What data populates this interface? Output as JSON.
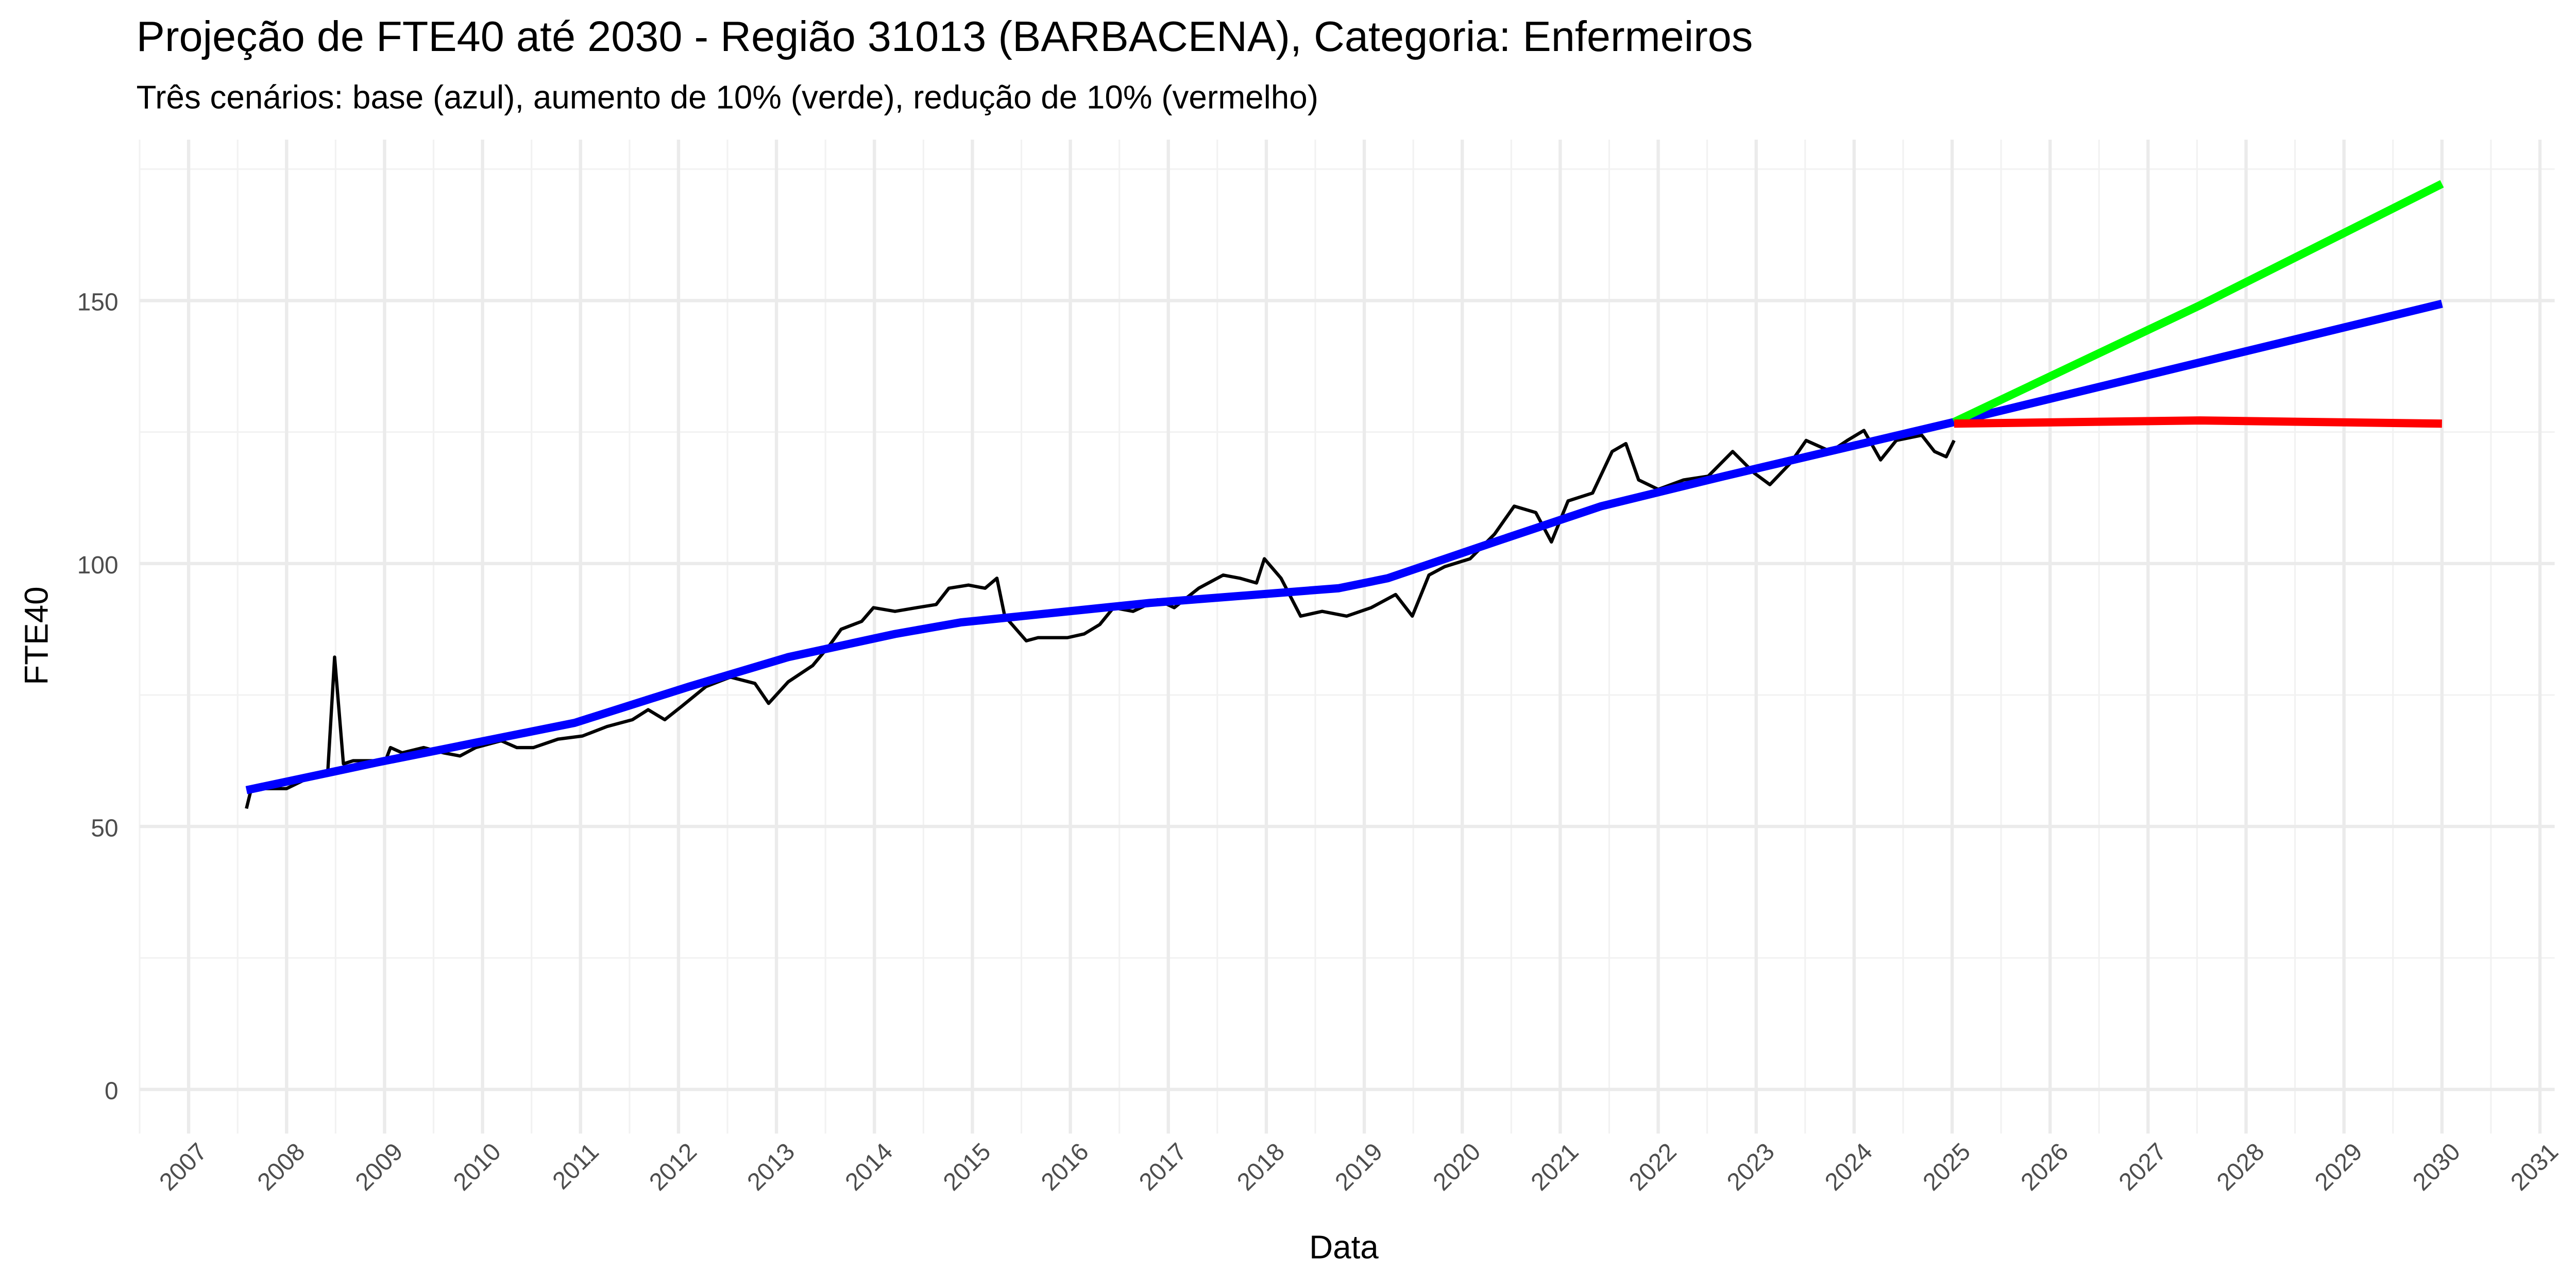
{
  "chart_data": {
    "type": "line",
    "title": "Projeção de FTE40 até 2030 - Região 31013 (BARBACENA), Categoria: Enfermeiros",
    "subtitle": "Três cenários: base (azul), aumento de 10% (verde), redução de 10% (vermelho)",
    "x_label": "Data",
    "y_label": "FTE40",
    "xlim": [
      2006.5,
      2031.15
    ],
    "ylim": [
      -8.4,
      180.6
    ],
    "xticks": [
      2007,
      2008,
      2009,
      2010,
      2011,
      2012,
      2013,
      2014,
      2015,
      2016,
      2017,
      2018,
      2019,
      2020,
      2021,
      2022,
      2023,
      2024,
      2025,
      2026,
      2027,
      2028,
      2029,
      2030,
      2031
    ],
    "yticks": [
      0,
      50,
      100,
      150
    ],
    "grid": true,
    "series": [
      {
        "color": "#000000",
        "x": [
          2007.59,
          2007.64,
          2008.0,
          2008.17,
          2008.34,
          2008.42,
          2008.49,
          2008.58,
          2008.68,
          2009.01,
          2009.06,
          2009.18,
          2009.4,
          2009.6,
          2009.77,
          2009.93,
          2010.19,
          2010.35,
          2010.52,
          2010.77,
          2011.02,
          2011.27,
          2011.53,
          2011.69,
          2011.86,
          2012.03,
          2012.28,
          2012.53,
          2012.78,
          2012.92,
          2013.12,
          2013.37,
          2013.54,
          2013.66,
          2013.87,
          2013.99,
          2014.21,
          2014.43,
          2014.63,
          2014.76,
          2014.96,
          2015.13,
          2015.25,
          2015.33,
          2015.55,
          2015.67,
          2015.97,
          2016.14,
          2016.3,
          2016.44,
          2016.64,
          2016.89,
          2017.06,
          2017.31,
          2017.56,
          2017.73,
          2017.9,
          2017.98,
          2018.15,
          2018.35,
          2018.57,
          2018.82,
          2019.07,
          2019.32,
          2019.49,
          2019.66,
          2019.82,
          2020.08,
          2020.33,
          2020.53,
          2020.75,
          2020.91,
          2021.08,
          2021.33,
          2021.53,
          2021.67,
          2021.8,
          2022.0,
          2022.26,
          2022.51,
          2022.76,
          2022.98,
          2023.14,
          2023.35,
          2023.51,
          2023.76,
          2023.93,
          2024.1,
          2024.27,
          2024.43,
          2024.69,
          2024.82,
          2024.94,
          2025.02
        ],
        "values": [
          53.4,
          57.2,
          57.2,
          58.75,
          59.7,
          60.3,
          82.2,
          61.9,
          62.5,
          62.5,
          65,
          64,
          65,
          64,
          63.4,
          65,
          66.3,
          65,
          65,
          66.6,
          67.2,
          69,
          70.3,
          72.2,
          70.3,
          72.8,
          76.6,
          78.4,
          77.2,
          73.4,
          77.5,
          80.6,
          84.4,
          87.5,
          89,
          91.6,
          90.9,
          91.6,
          92.2,
          95.3,
          95.9,
          95.3,
          97.2,
          90,
          85.3,
          85.9,
          85.9,
          86.6,
          88.4,
          91.6,
          90.9,
          93.1,
          91.6,
          95.3,
          97.8,
          97.2,
          96.3,
          100.9,
          97.2,
          90,
          90.9,
          90,
          91.6,
          94.1,
          90,
          97.8,
          99.4,
          100.9,
          105.6,
          110.9,
          109.7,
          104.1,
          111.9,
          113.4,
          121.3,
          122.8,
          115.9,
          114.1,
          115.9,
          116.6,
          121.3,
          117.2,
          115,
          119.1,
          123.4,
          121.3,
          123.4,
          125.3,
          119.7,
          123.4,
          124.4,
          121.3,
          120.3,
          123.4
        ]
      },
      {
        "color": "#0000ff",
        "x": [
          2007.59,
          2008.93,
          2010.94,
          2012.11,
          2013.12,
          2014.21,
          2014.88,
          2016.81,
          2018.74,
          2019.24,
          2020.33,
          2021.42,
          2022.67,
          2025.02,
          2030.0
        ],
        "values": [
          56.9,
          62.2,
          69.7,
          76.6,
          82.2,
          86.6,
          88.8,
          92.5,
          95.3,
          97.2,
          104.1,
          110.9,
          116.6,
          126.9,
          149.4
        ]
      },
      {
        "color": "#00ff00",
        "x": [
          2025.02,
          2027.53,
          2030.0
        ],
        "values": [
          126.9,
          149.1,
          172.2
        ]
      },
      {
        "color": "#ff0000",
        "x": [
          2025.02,
          2027.53,
          2030.0
        ],
        "values": [
          126.6,
          127.2,
          126.6
        ]
      }
    ]
  }
}
